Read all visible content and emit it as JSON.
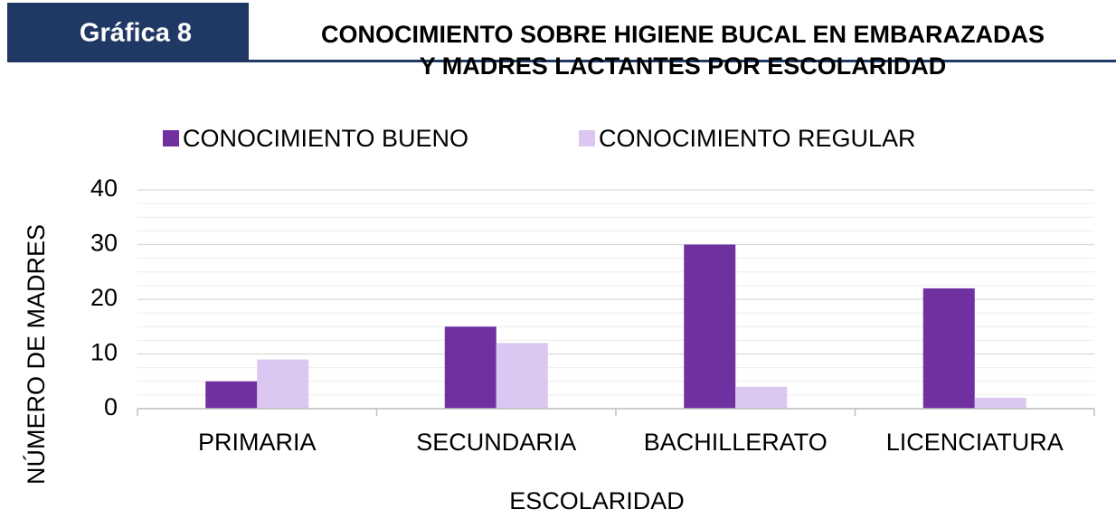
{
  "chart_data": {
    "type": "bar",
    "badge": "Gráfica 8",
    "title": [
      "CONOCIMIENTO SOBRE HIGIENE BUCAL EN EMBARAZADAS",
      "Y MADRES LACTANTES POR ESCOLARIDAD"
    ],
    "x_label": "ESCOLARIDAD",
    "y_label": "NÚMERO DE MADRES",
    "categories": [
      "PRIMARIA",
      "SECUNDARIA",
      "BACHILLERATO",
      "LICENCIATURA"
    ],
    "series": [
      {
        "name": "CONOCIMIENTO BUENO",
        "color": "#7030a0",
        "values": [
          5,
          15,
          30,
          22
        ]
      },
      {
        "name": "CONOCIMIENTO REGULAR",
        "color": "#dcc6f2",
        "values": [
          9,
          12,
          4,
          2
        ]
      }
    ],
    "ylim": [
      0,
      40
    ],
    "yticks": [
      0,
      10,
      20,
      30,
      40
    ],
    "minor_yticks": [
      2.5,
      5,
      7.5,
      12.5,
      15,
      17.5,
      22.5,
      25,
      27.5,
      32.5,
      35,
      37.5
    ],
    "grid": true,
    "legend": "top"
  }
}
